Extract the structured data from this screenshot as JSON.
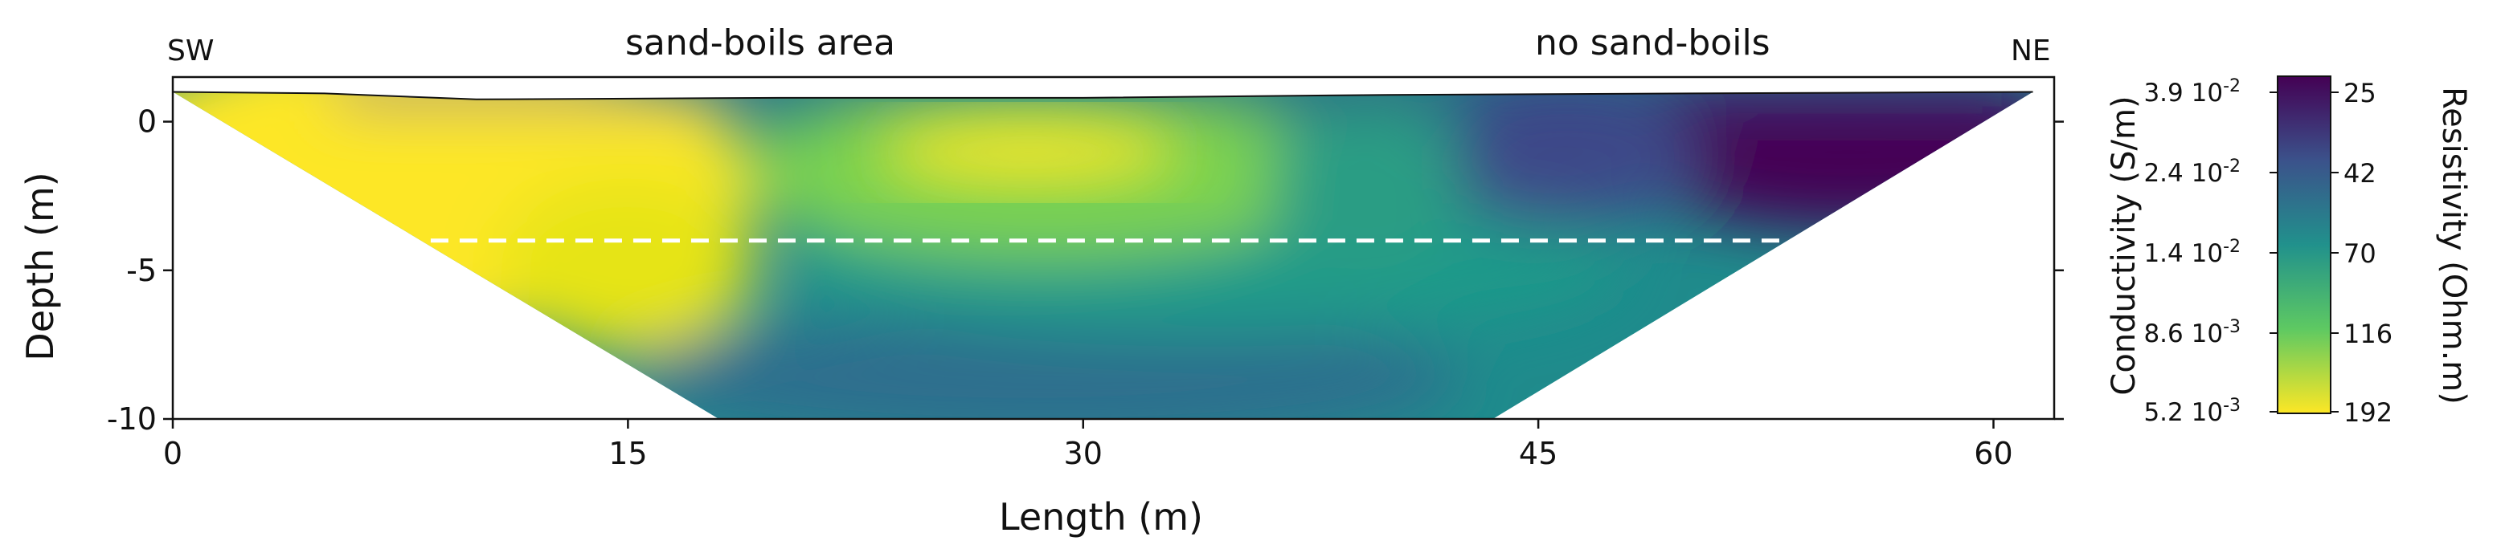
{
  "chart_data": {
    "type": "heatmap",
    "xlabel": "Length (m)",
    "ylabel": "Depth (m)",
    "xlim": [
      0,
      62
    ],
    "ylim": [
      -10,
      1
    ],
    "xticks": [
      0,
      15,
      30,
      45,
      60
    ],
    "xtick_labels": [
      "0",
      "15",
      "30",
      "45",
      "60"
    ],
    "yticks": [
      0,
      -5,
      -10
    ],
    "ytick_labels": [
      "0",
      "-5",
      "-10"
    ],
    "annotations": {
      "left_end": "SW",
      "right_end": "NE",
      "zone_left": "sand-boils area",
      "zone_right": "no sand-boils"
    },
    "reference_line": {
      "style": "dashed",
      "color": "#ffffff",
      "depth": -4.0,
      "x_start": 8.5,
      "x_end": 53.5
    },
    "section_outline": {
      "top": [
        [
          0,
          1.0
        ],
        [
          5,
          0.95
        ],
        [
          10,
          0.75
        ],
        [
          20,
          0.8
        ],
        [
          30,
          0.8
        ],
        [
          40,
          0.9
        ],
        [
          50,
          0.95
        ],
        [
          61.3,
          1.0
        ]
      ],
      "bottom_left": [
        [
          0,
          1.0
        ],
        [
          18,
          -10
        ],
        [
          43.5,
          -10
        ],
        [
          61.3,
          1.0
        ]
      ]
    },
    "colorbar": {
      "left_label": "Conductivity (S/m)",
      "right_label": "Resistivity (Ohm.m)",
      "conductivity_ticks": [
        "3.9 10",
        "2.4 10",
        "1.4 10",
        "8.6 10",
        "5.2 10"
      ],
      "conductivity_exponents": [
        "-2",
        "-2",
        "-2",
        "-3",
        "-3"
      ],
      "resistivity_ticks": [
        "25",
        "42",
        "70",
        "116",
        "192"
      ],
      "colors": [
        "#440154",
        "#3b528b",
        "#21918c",
        "#5ec962",
        "#fde725"
      ]
    }
  }
}
